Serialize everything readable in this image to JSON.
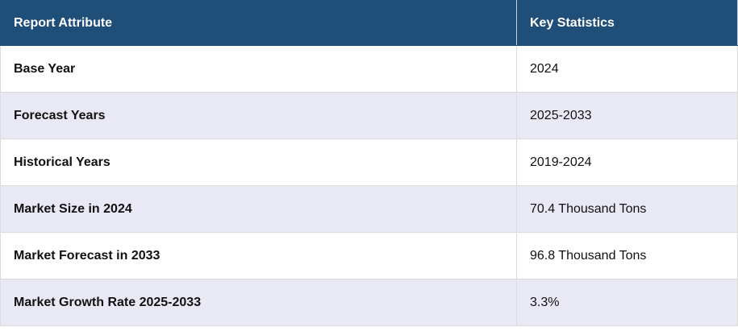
{
  "table": {
    "header": [
      "Report Attribute",
      "Key Statistics"
    ],
    "rows": [
      [
        "Base Year",
        "2024"
      ],
      [
        "Forecast Years",
        "2025-2033"
      ],
      [
        "Historical Years",
        "2019-2024"
      ],
      [
        "Market Size in 2024",
        "70.4 Thousand Tons"
      ],
      [
        "Market Forecast in 2033",
        "96.8 Thousand Tons"
      ],
      [
        "Market Growth Rate 2025-2033",
        "3.3%"
      ]
    ]
  }
}
